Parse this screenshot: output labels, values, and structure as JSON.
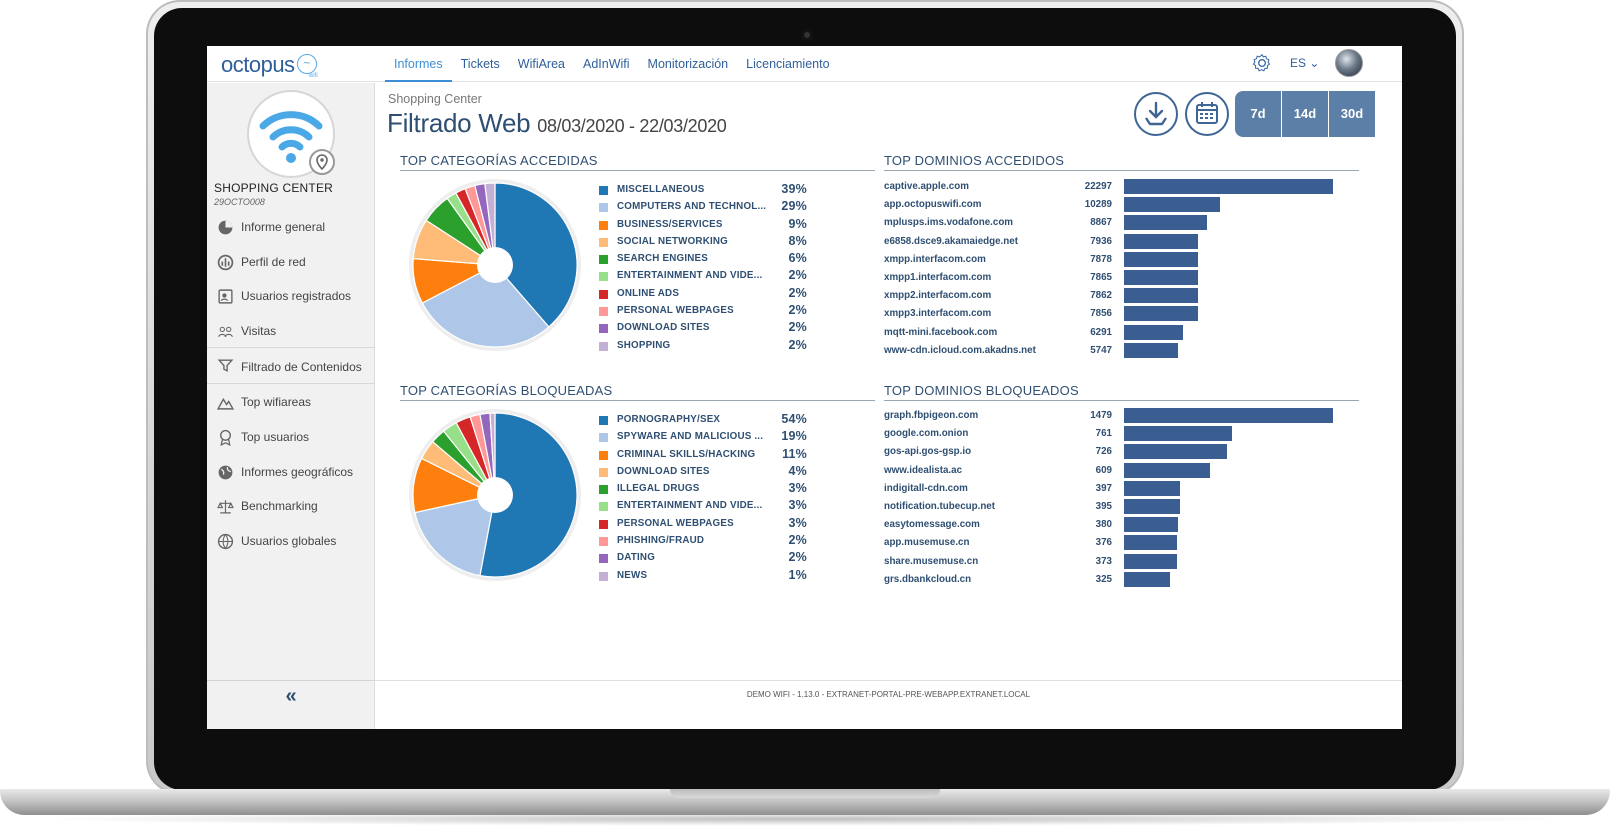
{
  "nav": {
    "logo": "octopus",
    "logo_sub": "wifi",
    "items": [
      "Informes",
      "Tickets",
      "WifiArea",
      "AdInWifi",
      "Monitorización",
      "Licenciamiento"
    ],
    "active_index": 0,
    "lang": "ES"
  },
  "sidebar": {
    "site_name": "SHOPPING CENTER",
    "site_code": "29OCTO008",
    "items": [
      {
        "label": "Informe general",
        "icon": "pie-chart-icon"
      },
      {
        "label": "Perfil de red",
        "icon": "network-profile-icon"
      },
      {
        "label": "Usuarios registrados",
        "icon": "registered-users-icon"
      },
      {
        "label": "Visitas",
        "icon": "visits-icon"
      },
      {
        "label": "Filtrado de Contenidos",
        "icon": "filter-icon"
      },
      {
        "label": "Top wifiareas",
        "icon": "mountain-icon"
      },
      {
        "label": "Top usuarios",
        "icon": "award-icon"
      },
      {
        "label": "Informes geográficos",
        "icon": "globe-icon"
      },
      {
        "label": "Benchmarking",
        "icon": "scale-icon"
      },
      {
        "label": "Usuarios globales",
        "icon": "world-users-icon"
      }
    ],
    "collapse": "«"
  },
  "header": {
    "breadcrumb": "Shopping Center",
    "title": "Filtrado Web",
    "range": "08/03/2020 - 22/03/2020",
    "periods": [
      "7d",
      "14d",
      "30d"
    ]
  },
  "sections": {
    "cat_accessed": "TOP CATEGORÍAS ACCEDIDAS",
    "dom_accessed": "TOP DOMINIOS ACCEDIDOS",
    "cat_blocked": "TOP CATEGORÍAS BLOQUEADAS",
    "dom_blocked": "TOP DOMINIOS BLOQUEADOS"
  },
  "colors": [
    "#1f77b4",
    "#aec7e8",
    "#ff7f0e",
    "#ffbb78",
    "#2ca02c",
    "#98df8a",
    "#d62728",
    "#ff9896",
    "#9467bd",
    "#c5b0d5"
  ],
  "chart_data": [
    {
      "type": "pie",
      "categories": [
        "MISCELLANEOUS",
        "COMPUTERS AND TECHNOL...",
        "BUSINESS/SERVICES",
        "SOCIAL NETWORKING",
        "SEARCH ENGINES",
        "ENTERTAINMENT AND VIDE...",
        "ONLINE ADS",
        "PERSONAL WEBPAGES",
        "DOWNLOAD SITES",
        "SHOPPING"
      ],
      "values": [
        39,
        29,
        9,
        8,
        6,
        2,
        2,
        2,
        2,
        2
      ],
      "labels": [
        "39%",
        "29%",
        "9%",
        "8%",
        "6%",
        "2%",
        "2%",
        "2%",
        "2%",
        "2%"
      ]
    },
    {
      "type": "bar",
      "categories": [
        "captive.apple.com",
        "app.octopuswifi.com",
        "mplusps.ims.vodafone.com",
        "e6858.dsce9.akamaiedge.net",
        "xmpp.interfacom.com",
        "xmpp1.interfacom.com",
        "xmpp2.interfacom.com",
        "xmpp3.interfacom.com",
        "mqtt-mini.facebook.com",
        "www-cdn.icloud.com.akadns.net"
      ],
      "values": [
        22297,
        10289,
        8867,
        7936,
        7878,
        7865,
        7862,
        7856,
        6291,
        5747
      ]
    },
    {
      "type": "pie",
      "categories": [
        "PORNOGRAPHY/SEX",
        "SPYWARE AND MALICIOUS ...",
        "CRIMINAL SKILLS/HACKING",
        "DOWNLOAD SITES",
        "ILLEGAL DRUGS",
        "ENTERTAINMENT AND VIDE...",
        "PERSONAL WEBPAGES",
        "PHISHING/FRAUD",
        "DATING",
        "NEWS"
      ],
      "values": [
        54,
        19,
        11,
        4,
        3,
        3,
        3,
        2,
        2,
        1
      ],
      "labels": [
        "54%",
        "19%",
        "11%",
        "4%",
        "3%",
        "3%",
        "3%",
        "2%",
        "2%",
        "1%"
      ]
    },
    {
      "type": "bar",
      "categories": [
        "graph.fbpigeon.com",
        "google.com.onion",
        "gos-api.gos-gsp.io",
        "www.idealista.ac",
        "indigitall-cdn.com",
        "notification.tubecup.net",
        "easytomessage.com",
        "app.musemuse.cn",
        "share.musemuse.cn",
        "grs.dbankcloud.cn"
      ],
      "values": [
        1479,
        761,
        726,
        609,
        397,
        395,
        380,
        376,
        373,
        325
      ]
    }
  ],
  "footer": "DEMO WIFI - 1.13.0 - EXTRANET-PORTAL-PRE-WEBAPP.EXTRANET.LOCAL"
}
